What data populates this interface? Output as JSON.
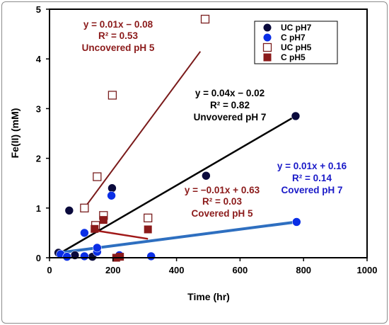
{
  "chart_data": {
    "type": "scatter",
    "xlabel": "Time (hr)",
    "ylabel": "Fe(II) (mM)",
    "xlim": [
      0,
      1000
    ],
    "ylim": [
      0,
      5
    ],
    "xticks": [
      0,
      200,
      400,
      600,
      800,
      1000
    ],
    "yticks": [
      0,
      1,
      2,
      3,
      4,
      5
    ],
    "grid": false,
    "legend_position": "top-right",
    "series": [
      {
        "name": "UC pH7",
        "color": "#0a0a3c",
        "marker": "filled-circle",
        "points": [
          [
            28,
            0.1
          ],
          [
            62,
            0.95
          ],
          [
            80,
            0.05
          ],
          [
            135,
            0.02
          ],
          [
            197,
            1.4
          ],
          [
            493,
            1.65
          ],
          [
            775,
            2.85
          ]
        ],
        "fit": {
          "x": [
            30,
            775
          ],
          "y": [
            0.08,
            2.85
          ],
          "color": "#000000"
        }
      },
      {
        "name": "C pH7",
        "color": "#0a2ee6",
        "marker": "filled-circle",
        "points": [
          [
            35,
            0.07
          ],
          [
            55,
            0.02
          ],
          [
            110,
            0.5
          ],
          [
            110,
            0.03
          ],
          [
            150,
            0.12
          ],
          [
            150,
            0.2
          ],
          [
            195,
            1.25
          ],
          [
            220,
            0.05
          ],
          [
            320,
            0.03
          ],
          [
            778,
            0.72
          ]
        ],
        "fit": {
          "x": [
            30,
            778
          ],
          "y": [
            0.1,
            0.72
          ],
          "color": "#2e6fc0"
        }
      },
      {
        "name": "UC pH5",
        "color": "#7a1f1f",
        "marker": "open-square",
        "points": [
          [
            110,
            1.0
          ],
          [
            145,
            0.65
          ],
          [
            150,
            1.63
          ],
          [
            170,
            0.85
          ],
          [
            198,
            3.27
          ],
          [
            310,
            0.8
          ],
          [
            490,
            4.8
          ]
        ],
        "fit": {
          "x": [
            110,
            475
          ],
          "y": [
            1.0,
            4.15
          ],
          "color": "#7a1a1a"
        }
      },
      {
        "name": "C pH5",
        "color": "#8b1a1a",
        "marker": "filled-square",
        "points": [
          [
            142,
            0.58
          ],
          [
            170,
            0.76
          ],
          [
            210,
            0.0
          ],
          [
            222,
            0.02
          ],
          [
            310,
            0.57
          ]
        ],
        "fit": {
          "x": [
            142,
            310
          ],
          "y": [
            0.55,
            0.38
          ],
          "color": "#a01818"
        }
      }
    ],
    "annotations": [
      {
        "lines": [
          "y = 0.01x − 0.08",
          "R² = 0.53",
          "Uncovered pH 5"
        ],
        "color": "#8b1a1a"
      },
      {
        "lines": [
          "y = 0.04x − 0.02",
          "R² = 0.82",
          "Unvovered pH 7"
        ],
        "color": "#000000"
      },
      {
        "lines": [
          "y = 0.01x + 0.16",
          "R² = 0.14",
          "Covered pH 7"
        ],
        "color": "#1a1ac8"
      },
      {
        "lines": [
          "y = −0.01x + 0.63",
          "R² = 0.03",
          "Covered pH 5"
        ],
        "color": "#8b1a1a"
      }
    ]
  }
}
